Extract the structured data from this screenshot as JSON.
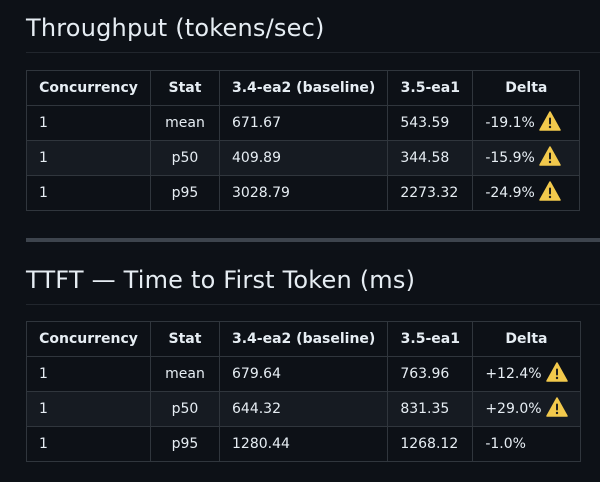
{
  "sections": [
    {
      "title": "Throughput (tokens/sec)",
      "headers": [
        "Concurrency",
        "Stat",
        "3.4-ea2 (baseline)",
        "3.5-ea1",
        "Delta"
      ],
      "rows": [
        {
          "concurrency": "1",
          "stat": "mean",
          "baseline": "671.67",
          "ea1": "543.59",
          "delta": "-19.1%",
          "warning": true
        },
        {
          "concurrency": "1",
          "stat": "p50",
          "baseline": "409.89",
          "ea1": "344.58",
          "delta": "-15.9%",
          "warning": true
        },
        {
          "concurrency": "1",
          "stat": "p95",
          "baseline": "3028.79",
          "ea1": "2273.32",
          "delta": "-24.9%",
          "warning": true
        }
      ]
    },
    {
      "title": "TTFT — Time to First Token (ms)",
      "headers": [
        "Concurrency",
        "Stat",
        "3.4-ea2 (baseline)",
        "3.5-ea1",
        "Delta"
      ],
      "rows": [
        {
          "concurrency": "1",
          "stat": "mean",
          "baseline": "679.64",
          "ea1": "763.96",
          "delta": "+12.4%",
          "warning": true
        },
        {
          "concurrency": "1",
          "stat": "p50",
          "baseline": "644.32",
          "ea1": "831.35",
          "delta": "+29.0%",
          "warning": true
        },
        {
          "concurrency": "1",
          "stat": "p95",
          "baseline": "1280.44",
          "ea1": "1268.12",
          "delta": "-1.0%",
          "warning": false
        }
      ]
    }
  ],
  "icons": {
    "warning": "warning-icon"
  },
  "colors": {
    "warning": "#f2c94c",
    "background": "#0d1117",
    "row_alt": "#161b22",
    "border": "#30363d"
  }
}
